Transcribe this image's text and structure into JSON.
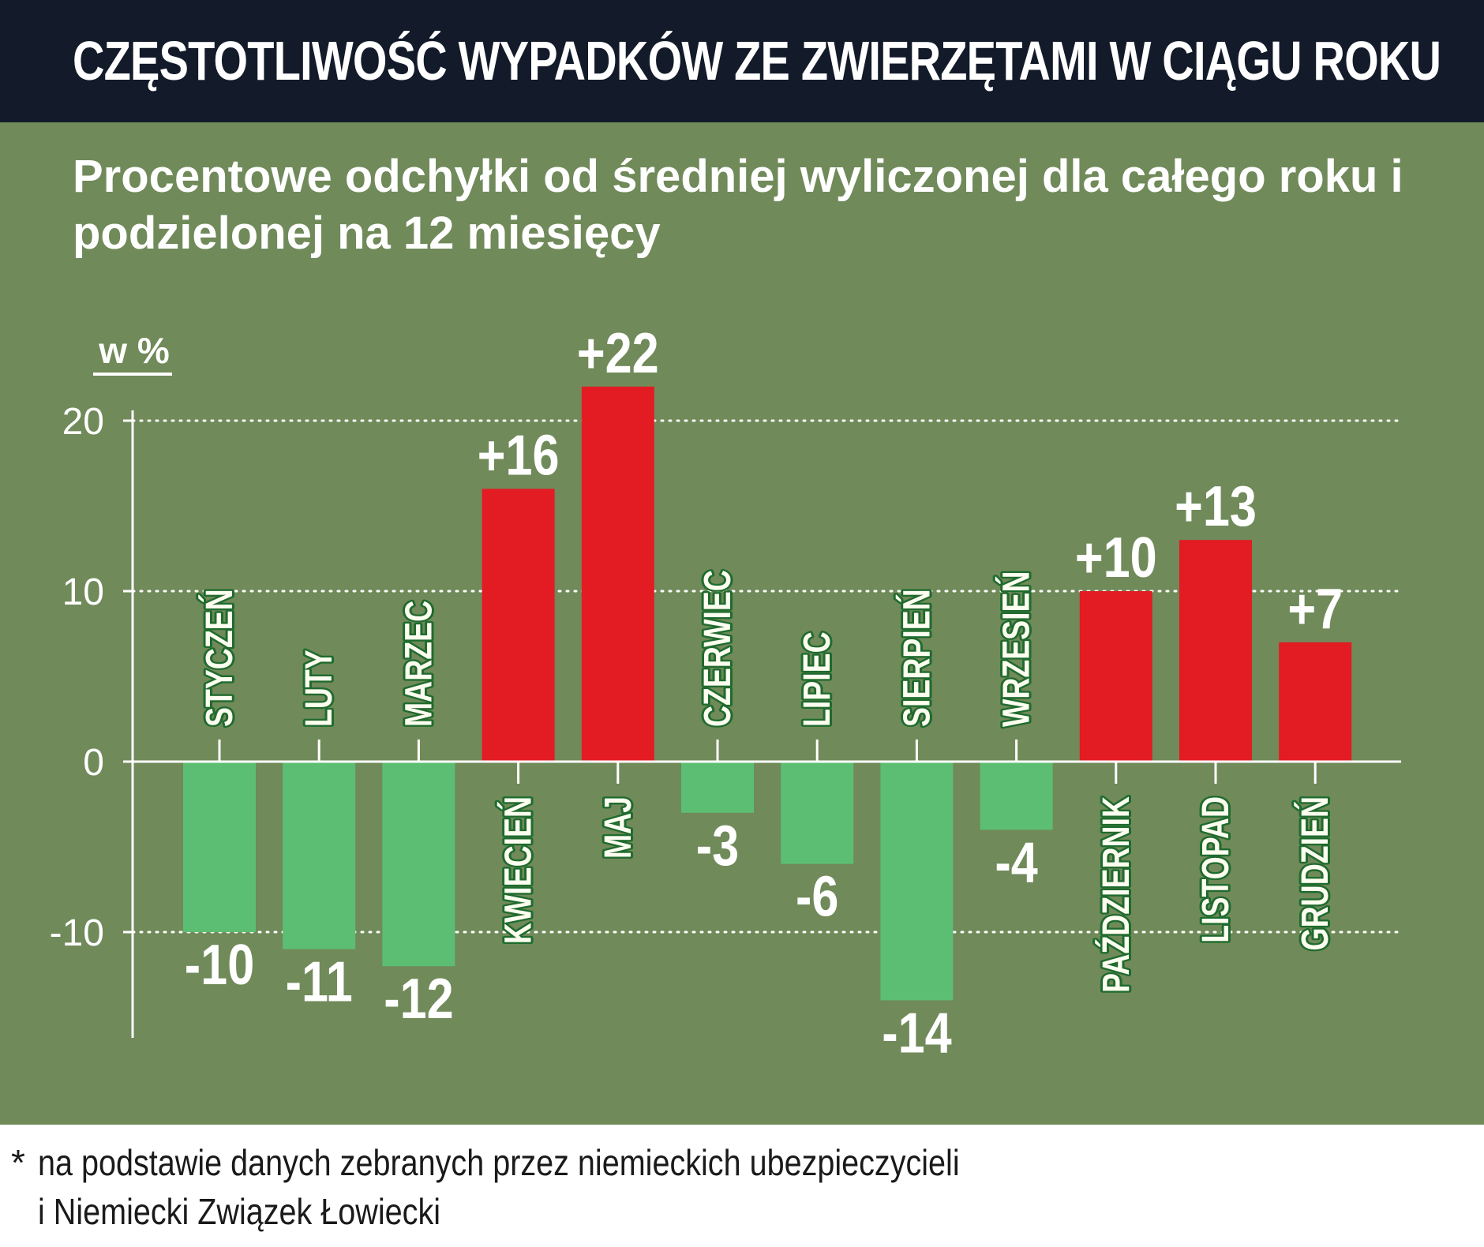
{
  "title": "CZĘSTOTLIWOŚĆ WYPADKÓW ZE ZWIERZĘTAMI W CIĄGU ROKU",
  "subtitle": "Procentowe odchyłki od średniej wyliczonej dla całego roku i podzielonej na 12 miesięcy",
  "footnote": {
    "marker": "*",
    "line1": "na podstawie danych zebranych przez niemieckich ubezpieczycieli",
    "line2": "i Niemiecki Związek Łowiecki"
  },
  "colors": {
    "header_bg": "#131b2a",
    "panel_bg": "#708a5a",
    "positive": "#e31b23",
    "negative": "#5cbe72",
    "label_fill": "#ffffff",
    "month_fill": "#fdfdf0",
    "month_stroke": "#1f6b2e"
  },
  "chart_data": {
    "type": "bar",
    "title": "CZĘSTOTLIWOŚĆ WYPADKÓW ZE ZWIERZĘTAMI W CIĄGU ROKU",
    "ylabel": "w %",
    "xlabel": "",
    "ylim": [
      -16,
      22
    ],
    "yticks": [
      20,
      10,
      0,
      -10
    ],
    "ytick_labels": [
      "20",
      "10",
      "0",
      "-10"
    ],
    "grid": true,
    "categories": [
      "STYCZEŃ",
      "LUTY",
      "MARZEC",
      "KWIECIEŃ",
      "MAJ",
      "CZERWIEC",
      "LIPIEC",
      "SIERPIEŃ",
      "WRZESIEŃ",
      "PAŹDZIERNIK",
      "LISTOPAD",
      "GRUDZIEŃ"
    ],
    "values": [
      -10,
      -11,
      -12,
      16,
      22,
      -3,
      -6,
      -14,
      -4,
      10,
      13,
      7
    ],
    "value_labels": [
      "-10",
      "-11",
      "-12",
      "+16",
      "+22",
      "-3",
      "-6",
      "-14",
      "-4",
      "+10",
      "+13",
      "+7"
    ]
  }
}
